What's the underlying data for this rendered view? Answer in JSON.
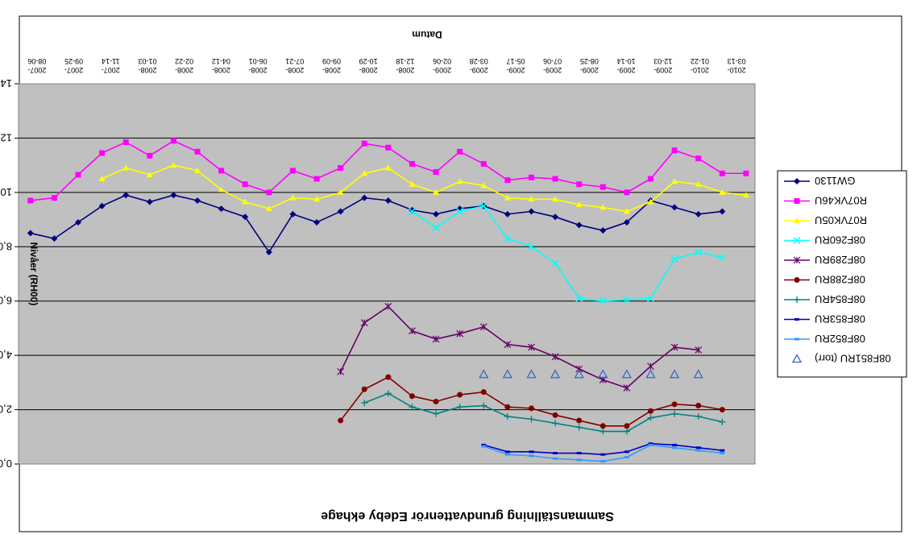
{
  "chart_data": {
    "type": "line",
    "title": "Sammanställning grundvattenrör Edeby ekhage",
    "xlabel": "Datum",
    "ylabel": "Nivåer (RH00)",
    "ylim": [
      0,
      14
    ],
    "y_ticks": [
      "0,00",
      "2,00",
      "4,00",
      "6,00",
      "8,00",
      "10,00",
      "12,00",
      "14,00"
    ],
    "y_inverted": true,
    "grid": "horizontal",
    "plot_background": "#C0C0C0",
    "legend_position": "right",
    "categories": [
      "2007-08-06",
      "2007-09-25",
      "2007-11-14",
      "2008-01-03",
      "2008-02-22",
      "2008-04-12",
      "2008-06-01",
      "2008-07-21",
      "2008-09-09",
      "2008-10-29",
      "2008-12-18",
      "2009-02-06",
      "2009-03-28",
      "2009-05-17",
      "2009-07-06",
      "2009-08-25",
      "2009-10-14",
      "2009-12-03",
      "2010-01-22",
      "2010-03-13"
    ],
    "series": [
      {
        "name": "GW1130",
        "color": "#000080",
        "marker": "diamond",
        "points": [
          [
            0.05,
            8.5
          ],
          [
            0.85,
            8.3
          ],
          [
            1.65,
            8.9
          ],
          [
            2.45,
            9.5
          ],
          [
            3.25,
            9.9
          ],
          [
            4.05,
            9.65
          ],
          [
            4.85,
            9.9
          ],
          [
            5.65,
            9.7
          ],
          [
            6.45,
            9.4
          ],
          [
            7.25,
            9.1
          ],
          [
            8.05,
            7.8
          ],
          [
            8.85,
            9.2
          ],
          [
            9.65,
            8.9
          ],
          [
            10.45,
            9.3
          ],
          [
            11.25,
            9.8
          ],
          [
            12.05,
            9.7
          ],
          [
            12.85,
            9.35
          ],
          [
            13.65,
            9.2
          ],
          [
            14.45,
            9.4
          ],
          [
            15.25,
            9.5
          ],
          [
            16.05,
            9.2
          ],
          [
            16.85,
            9.3
          ],
          [
            17.65,
            9.1
          ],
          [
            18.45,
            8.8
          ],
          [
            19.25,
            8.6
          ],
          [
            20.05,
            8.9
          ],
          [
            20.85,
            9.7
          ],
          [
            21.65,
            9.45
          ],
          [
            22.45,
            9.2
          ],
          [
            23.25,
            9.3
          ]
        ]
      },
      {
        "name": "R07VK46U",
        "color": "#FF00FF",
        "marker": "square",
        "points": [
          [
            0.05,
            9.7
          ],
          [
            0.85,
            9.8
          ],
          [
            1.65,
            10.65
          ],
          [
            2.45,
            11.45
          ],
          [
            3.25,
            11.85
          ],
          [
            4.05,
            11.35
          ],
          [
            4.85,
            11.9
          ],
          [
            5.65,
            11.5
          ],
          [
            6.45,
            10.8
          ],
          [
            7.25,
            10.3
          ],
          [
            8.05,
            10.0
          ],
          [
            8.85,
            10.8
          ],
          [
            9.65,
            10.5
          ],
          [
            10.45,
            10.9
          ],
          [
            11.25,
            11.8
          ],
          [
            12.05,
            11.65
          ],
          [
            12.85,
            11.05
          ],
          [
            13.65,
            10.75
          ],
          [
            14.45,
            11.5
          ],
          [
            15.25,
            11.05
          ],
          [
            16.05,
            10.45
          ],
          [
            16.85,
            10.55
          ],
          [
            17.65,
            10.5
          ],
          [
            18.45,
            10.3
          ],
          [
            19.25,
            10.2
          ],
          [
            20.05,
            10.0
          ],
          [
            20.85,
            10.5
          ],
          [
            21.65,
            11.55
          ],
          [
            22.45,
            11.25
          ],
          [
            23.25,
            10.7
          ],
          [
            24.05,
            10.7
          ]
        ]
      },
      {
        "name": "R07VK05U",
        "color": "#FFFF00",
        "marker": "triangle-down",
        "points": [
          [
            2.45,
            10.5
          ],
          [
            3.25,
            10.9
          ],
          [
            4.05,
            10.65
          ],
          [
            4.85,
            11.0
          ],
          [
            5.65,
            10.8
          ],
          [
            6.45,
            10.1
          ],
          [
            7.25,
            9.65
          ],
          [
            8.05,
            9.4
          ],
          [
            8.85,
            9.8
          ],
          [
            9.65,
            9.75
          ],
          [
            10.45,
            10.0
          ],
          [
            11.25,
            10.7
          ],
          [
            12.05,
            10.9
          ],
          [
            12.85,
            10.3
          ],
          [
            13.65,
            10.0
          ],
          [
            14.45,
            10.4
          ],
          [
            15.25,
            10.25
          ],
          [
            16.05,
            9.8
          ],
          [
            16.85,
            9.75
          ],
          [
            17.65,
            9.75
          ],
          [
            18.45,
            9.55
          ],
          [
            19.25,
            9.45
          ],
          [
            20.05,
            9.3
          ],
          [
            20.85,
            9.65
          ],
          [
            21.65,
            10.4
          ],
          [
            22.45,
            10.3
          ],
          [
            23.25,
            10.0
          ],
          [
            24.05,
            9.9
          ]
        ]
      },
      {
        "name": "08F260RU",
        "color": "#00FFFF",
        "marker": "x",
        "points": [
          [
            12.85,
            9.3
          ],
          [
            13.65,
            8.7
          ],
          [
            14.45,
            9.3
          ],
          [
            15.25,
            9.5
          ],
          [
            16.05,
            8.3
          ],
          [
            16.85,
            8.0
          ],
          [
            17.65,
            7.4
          ],
          [
            18.45,
            6.1
          ],
          [
            19.25,
            6.0
          ],
          [
            20.05,
            6.05
          ],
          [
            20.85,
            6.1
          ],
          [
            21.65,
            7.55
          ],
          [
            22.45,
            7.8
          ],
          [
            23.25,
            7.6
          ]
        ]
      },
      {
        "name": "08F289RU",
        "color": "#660066",
        "marker": "asterisk",
        "points": [
          [
            10.45,
            3.4
          ],
          [
            11.25,
            5.2
          ],
          [
            12.05,
            5.8
          ],
          [
            12.85,
            4.9
          ],
          [
            13.65,
            4.6
          ],
          [
            14.45,
            4.8
          ],
          [
            15.25,
            5.05
          ],
          [
            16.05,
            4.4
          ],
          [
            16.85,
            4.3
          ],
          [
            17.65,
            3.95
          ],
          [
            18.45,
            3.5
          ],
          [
            19.25,
            3.1
          ],
          [
            20.05,
            2.8
          ],
          [
            20.85,
            3.6
          ],
          [
            21.65,
            4.3
          ],
          [
            22.45,
            4.2
          ]
        ]
      },
      {
        "name": "08F288RU",
        "color": "#800000",
        "marker": "circle",
        "points": [
          [
            10.45,
            1.6
          ],
          [
            11.25,
            2.75
          ],
          [
            12.05,
            3.2
          ],
          [
            12.85,
            2.5
          ],
          [
            13.65,
            2.3
          ],
          [
            14.45,
            2.55
          ],
          [
            15.25,
            2.65
          ],
          [
            16.05,
            2.1
          ],
          [
            16.85,
            2.05
          ],
          [
            17.65,
            1.8
          ],
          [
            18.45,
            1.6
          ],
          [
            19.25,
            1.4
          ],
          [
            20.05,
            1.4
          ],
          [
            20.85,
            1.95
          ],
          [
            21.65,
            2.2
          ],
          [
            22.45,
            2.15
          ],
          [
            23.25,
            2.0
          ]
        ]
      },
      {
        "name": "08F854RU",
        "color": "#008080",
        "marker": "plus",
        "points": [
          [
            11.25,
            2.25
          ],
          [
            12.05,
            2.6
          ],
          [
            12.85,
            2.1
          ],
          [
            13.65,
            1.85
          ],
          [
            14.45,
            2.1
          ],
          [
            15.25,
            2.15
          ],
          [
            16.05,
            1.75
          ],
          [
            16.85,
            1.65
          ],
          [
            17.65,
            1.5
          ],
          [
            18.45,
            1.35
          ],
          [
            19.25,
            1.2
          ],
          [
            20.05,
            1.2
          ],
          [
            20.85,
            1.7
          ],
          [
            21.65,
            1.85
          ],
          [
            22.45,
            1.75
          ],
          [
            23.25,
            1.55
          ]
        ]
      },
      {
        "name": "08F853RU",
        "color": "#0000CC",
        "marker": "dash",
        "points": [
          [
            15.25,
            0.7
          ],
          [
            16.05,
            0.45
          ],
          [
            16.85,
            0.45
          ],
          [
            17.65,
            0.4
          ],
          [
            18.45,
            0.4
          ],
          [
            19.25,
            0.35
          ],
          [
            20.05,
            0.45
          ],
          [
            20.85,
            0.75
          ],
          [
            21.65,
            0.7
          ],
          [
            22.45,
            0.6
          ],
          [
            23.25,
            0.5
          ]
        ]
      },
      {
        "name": "08F852RU",
        "color": "#3399FF",
        "marker": "dash",
        "points": [
          [
            15.25,
            0.65
          ],
          [
            16.05,
            0.35
          ],
          [
            16.85,
            0.3
          ],
          [
            17.65,
            0.2
          ],
          [
            18.45,
            0.15
          ],
          [
            19.25,
            0.1
          ],
          [
            20.05,
            0.25
          ],
          [
            20.85,
            0.7
          ],
          [
            21.65,
            0.6
          ],
          [
            22.45,
            0.5
          ],
          [
            23.25,
            0.4
          ]
        ]
      },
      {
        "name": "08F851RU (torr)",
        "color": "#3366CC",
        "marker": "triangle-down-open",
        "line": false,
        "points": [
          [
            15.25,
            3.3
          ],
          [
            16.05,
            3.3
          ],
          [
            16.85,
            3.3
          ],
          [
            17.65,
            3.3
          ],
          [
            18.45,
            3.3
          ],
          [
            19.25,
            3.3
          ],
          [
            20.05,
            3.3
          ],
          [
            20.85,
            3.3
          ],
          [
            21.65,
            3.3
          ],
          [
            22.45,
            3.3
          ]
        ]
      }
    ]
  }
}
